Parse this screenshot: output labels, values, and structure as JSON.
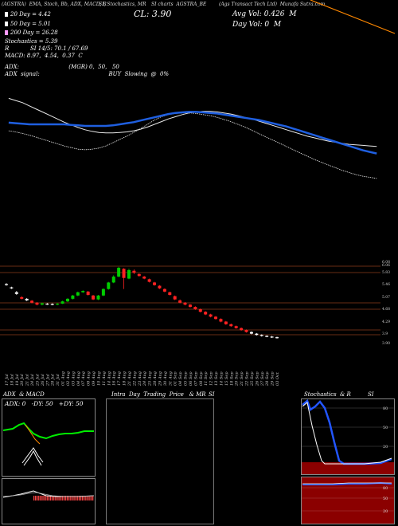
{
  "header": {
    "line1_left": "(AGSTRA) ​ EMA,​ Stoch,​ Bb,​ ADX,​ MACD,​ R",
    "line1_mid": "SI,​ Stochastics,​ MR",
    "line1_mid2": "SI charts ​ AGSTRA_BE",
    "line1_right": "(Ags Transact Tech Ltd) ​ Munafa​ Sutra​.com",
    "cl": "CL: 3.90",
    "avg_vol": "Avg Vol: 0.426 ​ M",
    "day_vol": "Day Vol: 0 ​ M"
  },
  "legend": {
    "items": [
      {
        "label": "20 Day = 4.42",
        "color": "#ffffff"
      },
      {
        "label": "50 Day = 5.01",
        "color": "#ffffff"
      },
      {
        "label": "200 Day = 26.28",
        "color": "#ff99ff"
      }
    ],
    "stoch": "Stochastics = 5.39",
    "rsi": "R ​ ​ ​ ​ ​ ​ ​ ​ ​ ​ ​ SI 14/5: 70.1 / 67.69",
    "macd": "MACD: 8.97, ​ 4.54, ​ 0.37 ​ C",
    "adx": "ADX: ​ ​ ​ ​ ​ ​ ​ ​ ​ ​ ​ ​ ​ ​ ​ ​ ​ ​ ​ ​ ​ ​ ​ ​ ​ ​ ​ (MGR) 0, ​ 50, ​ ​ 50",
    "adx_signal": "ADX ​ signal: ​ ​ ​ ​ ​ ​ ​ ​ ​ ​ ​ ​ ​ ​ ​ ​ ​ ​ ​ ​ ​ ​ ​ ​ ​ ​ ​ ​ ​ ​ ​ ​ ​ ​ ​ ​ ​ ​ BUY ​ Slowing ​ @ ​ 0%"
  },
  "colors": {
    "ema_blue": "#1f5fe0",
    "ma_white": "#e8e8e8",
    "orange": "#ff8800",
    "up": "#00cc00",
    "down": "#ff2222",
    "hline": "#8b3a1a",
    "stoch_bg": "#8b0000",
    "rsi_blue": "#2255ff"
  },
  "price_axis": {
    "ticks": [
      "6.08",
      "6.06",
      "5.83",
      "5.46",
      "5.07",
      "4.68",
      "4.29",
      "3.9",
      "3.90"
    ]
  },
  "dates": [
    "17 Jul",
    "18 Jul",
    "19 Jul",
    "20 Jul",
    "21 Jul",
    "24 Jul",
    "25 Jul",
    "26 Jul",
    "27 Jul",
    "28 Jul",
    "31 Jul",
    "01 Aug",
    "02 Aug",
    "03 Aug",
    "04 Aug",
    "07 Aug",
    "08 Aug",
    "09 Aug",
    "10 Aug",
    "11 Aug",
    "14 Aug",
    "16 Aug",
    "17 Aug",
    "18 Aug",
    "21 Aug",
    "22 Aug",
    "23 Aug",
    "24 Aug",
    "25 Aug",
    "28 Aug",
    "29 Aug",
    "30 Aug",
    "31 Aug",
    "01 Sep",
    "04 Sep",
    "05 Sep",
    "06 Sep",
    "07 Sep",
    "08 Sep",
    "11 Sep",
    "12 Sep",
    "13 Sep",
    "14 Sep",
    "15 Sep",
    "18 Sep",
    "20 Sep",
    "21 Sep",
    "22 Sep",
    "25 Sep",
    "26 Sep",
    "27 Sep",
    "28 Sep",
    "29 Sep",
    "03 Oct"
  ],
  "panels": {
    "adx_title": "ADX ​ & MACD",
    "adx_values": "ADX: 0 ​ ​ -DY: 50 ​ ​ +DY: 50",
    "intra_title": "Intra ​ Day ​ Trading ​ Price ​ ​ & MR",
    "intra_si": "SI",
    "stoch_title": "Stochastics ​ & R",
    "stoch_si": "SI",
    "stoch_ticks": [
      "80",
      "50",
      "20"
    ],
    "rsi_ticks": [
      "80",
      "50",
      "20"
    ]
  },
  "chart_data": {
    "type": "candlestick",
    "title": "AGSTRA_BE",
    "ylim": [
      3.7,
      6.2
    ],
    "candles": [
      {
        "o": 5.55,
        "c": 5.52,
        "h": 5.58,
        "l": 5.5
      },
      {
        "o": 5.45,
        "c": 5.42,
        "h": 5.47,
        "l": 5.4
      },
      {
        "o": 5.3,
        "c": 5.25,
        "h": 5.34,
        "l": 5.22
      },
      {
        "o": 5.15,
        "c": 5.1,
        "h": 5.18,
        "l": 5.08
      },
      {
        "o": 5.1,
        "c": 5.05,
        "h": 5.12,
        "l": 5.03
      },
      {
        "o": 5.04,
        "c": 4.98,
        "h": 5.06,
        "l": 4.96
      },
      {
        "o": 4.98,
        "c": 4.92,
        "h": 5.0,
        "l": 4.9
      },
      {
        "o": 4.92,
        "c": 4.96,
        "h": 4.98,
        "l": 4.9
      },
      {
        "o": 4.95,
        "c": 4.93,
        "h": 4.97,
        "l": 4.91
      },
      {
        "o": 4.94,
        "c": 4.92,
        "h": 4.96,
        "l": 4.9
      },
      {
        "o": 4.92,
        "c": 4.95,
        "h": 4.97,
        "l": 4.9
      },
      {
        "o": 4.95,
        "c": 5.02,
        "h": 5.04,
        "l": 4.94
      },
      {
        "o": 5.02,
        "c": 5.1,
        "h": 5.12,
        "l": 5.0
      },
      {
        "o": 5.1,
        "c": 5.2,
        "h": 5.22,
        "l": 5.08
      },
      {
        "o": 5.2,
        "c": 5.3,
        "h": 5.32,
        "l": 5.18
      },
      {
        "o": 5.3,
        "c": 5.34,
        "h": 5.36,
        "l": 5.28
      },
      {
        "o": 5.32,
        "c": 5.22,
        "h": 5.34,
        "l": 5.2
      },
      {
        "o": 5.2,
        "c": 5.08,
        "h": 5.22,
        "l": 5.06
      },
      {
        "o": 5.08,
        "c": 5.2,
        "h": 5.22,
        "l": 5.06
      },
      {
        "o": 5.2,
        "c": 5.4,
        "h": 5.42,
        "l": 5.18
      },
      {
        "o": 5.4,
        "c": 5.6,
        "h": 5.62,
        "l": 5.38
      },
      {
        "o": 5.6,
        "c": 5.78,
        "h": 5.82,
        "l": 5.58
      },
      {
        "o": 5.78,
        "c": 6.05,
        "h": 6.08,
        "l": 5.76
      },
      {
        "o": 6.02,
        "c": 5.74,
        "h": 6.04,
        "l": 5.4
      },
      {
        "o": 5.72,
        "c": 5.98,
        "h": 6.02,
        "l": 5.7
      },
      {
        "o": 5.96,
        "c": 5.9,
        "h": 6.0,
        "l": 5.86
      },
      {
        "o": 5.86,
        "c": 5.8,
        "h": 5.88,
        "l": 5.78
      },
      {
        "o": 5.78,
        "c": 5.72,
        "h": 5.8,
        "l": 5.7
      },
      {
        "o": 5.7,
        "c": 5.62,
        "h": 5.72,
        "l": 5.6
      },
      {
        "o": 5.6,
        "c": 5.52,
        "h": 5.62,
        "l": 5.5
      },
      {
        "o": 5.5,
        "c": 5.42,
        "h": 5.52,
        "l": 5.4
      },
      {
        "o": 5.4,
        "c": 5.32,
        "h": 5.42,
        "l": 5.3
      },
      {
        "o": 5.3,
        "c": 5.22,
        "h": 5.32,
        "l": 5.2
      },
      {
        "o": 5.18,
        "c": 5.08,
        "h": 5.2,
        "l": 5.06
      },
      {
        "o": 5.05,
        "c": 4.98,
        "h": 5.08,
        "l": 4.96
      },
      {
        "o": 4.98,
        "c": 4.92,
        "h": 5.0,
        "l": 4.9
      },
      {
        "o": 4.92,
        "c": 4.85,
        "h": 4.94,
        "l": 4.83
      },
      {
        "o": 4.85,
        "c": 4.78,
        "h": 4.87,
        "l": 4.76
      },
      {
        "o": 4.78,
        "c": 4.7,
        "h": 4.8,
        "l": 4.68
      },
      {
        "o": 4.7,
        "c": 4.62,
        "h": 4.72,
        "l": 4.6
      },
      {
        "o": 4.62,
        "c": 4.55,
        "h": 4.64,
        "l": 4.53
      },
      {
        "o": 4.55,
        "c": 4.48,
        "h": 4.57,
        "l": 4.46
      },
      {
        "o": 4.48,
        "c": 4.4,
        "h": 4.5,
        "l": 4.38
      },
      {
        "o": 4.4,
        "c": 4.32,
        "h": 4.42,
        "l": 4.3
      },
      {
        "o": 4.32,
        "c": 4.26,
        "h": 4.34,
        "l": 4.24
      },
      {
        "o": 4.26,
        "c": 4.2,
        "h": 4.28,
        "l": 4.18
      },
      {
        "o": 4.2,
        "c": 4.14,
        "h": 4.22,
        "l": 4.12
      },
      {
        "o": 4.14,
        "c": 4.08,
        "h": 4.16,
        "l": 4.06
      },
      {
        "o": 4.08,
        "c": 4.03,
        "h": 4.1,
        "l": 4.01
      },
      {
        "o": 4.03,
        "c": 3.99,
        "h": 4.05,
        "l": 3.97
      },
      {
        "o": 3.99,
        "c": 3.96,
        "h": 4.01,
        "l": 3.94
      },
      {
        "o": 3.96,
        "c": 3.94,
        "h": 3.98,
        "l": 3.92
      },
      {
        "o": 3.94,
        "c": 3.92,
        "h": 3.96,
        "l": 3.9
      },
      {
        "o": 3.92,
        "c": 3.9,
        "h": 3.94,
        "l": 3.88
      }
    ],
    "ma_series": [
      {
        "name": "20 Day",
        "values": [
          5.3,
          5.28,
          5.25,
          5.22,
          5.18,
          5.14,
          5.1,
          5.06,
          5.02,
          4.99,
          4.96,
          4.95,
          4.96,
          4.98,
          5.02,
          5.08,
          5.14,
          5.2,
          5.27,
          5.34,
          5.42,
          5.5,
          5.56,
          5.6,
          5.62,
          5.63,
          5.63,
          5.62,
          5.6,
          5.58,
          5.55,
          5.51,
          5.47,
          5.42,
          5.37,
          5.31,
          5.25,
          5.19,
          5.13,
          5.07,
          5.01,
          4.95,
          4.89,
          4.83,
          4.77,
          4.72,
          4.67,
          4.62,
          4.57,
          4.53,
          4.49,
          4.46,
          4.44,
          4.42
        ]
      },
      {
        "name": "50 Day",
        "values": [
          5.9,
          5.86,
          5.82,
          5.76,
          5.7,
          5.64,
          5.58,
          5.52,
          5.46,
          5.41,
          5.36,
          5.32,
          5.29,
          5.27,
          5.26,
          5.26,
          5.27,
          5.28,
          5.3,
          5.33,
          5.37,
          5.42,
          5.47,
          5.52,
          5.56,
          5.6,
          5.63,
          5.65,
          5.66,
          5.66,
          5.65,
          5.63,
          5.61,
          5.58,
          5.55,
          5.52,
          5.48,
          5.44,
          5.4,
          5.36,
          5.32,
          5.28,
          5.24,
          5.2,
          5.17,
          5.14,
          5.11,
          5.09,
          5.07,
          5.05,
          5.04,
          5.03,
          5.02,
          5.01
        ]
      }
    ],
    "ema_series": {
      "name": "EMA",
      "values": [
        5.45,
        5.44,
        5.43,
        5.42,
        5.42,
        5.42,
        5.42,
        5.42,
        5.42,
        5.41,
        5.4,
        5.39,
        5.39,
        5.39,
        5.39,
        5.4,
        5.42,
        5.44,
        5.46,
        5.49,
        5.52,
        5.55,
        5.58,
        5.61,
        5.63,
        5.64,
        5.65,
        5.65,
        5.64,
        5.63,
        5.62,
        5.6,
        5.58,
        5.56,
        5.54,
        5.52,
        5.5,
        5.47,
        5.44,
        5.41,
        5.38,
        5.34,
        5.3,
        5.26,
        5.22,
        5.18,
        5.14,
        5.1,
        5.06,
        5.02,
        4.98,
        4.94,
        4.91,
        4.88
      ]
    }
  }
}
